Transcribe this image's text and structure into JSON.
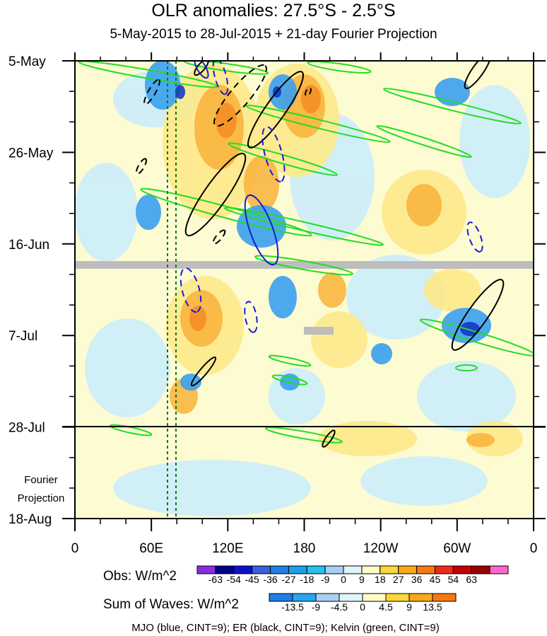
{
  "chart_data": {
    "type": "heatmap",
    "title": "OLR anomalies: 27.5°S - 2.5°S",
    "subtitle": "5-May-2015 to 28-Jul-2015 + 21-day Fourier Projection",
    "x_ticks": [
      "0",
      "60E",
      "120E",
      "180",
      "120W",
      "60W",
      "0"
    ],
    "y_ticks": [
      "5-May",
      "26-May",
      "16-Jun",
      "7-Jul",
      "28-Jul",
      "18-Aug"
    ],
    "projection_label": [
      "Fourier",
      "Projection"
    ],
    "obs_colorbar": {
      "label": "Obs: W/m^2",
      "levels": [
        "-63",
        "-54",
        "-45",
        "-36",
        "-27",
        "-18",
        "-9",
        "0",
        "9",
        "18",
        "27",
        "36",
        "45",
        "54",
        "63"
      ],
      "colors": [
        "#8a2be2",
        "#00008b",
        "#1010c8",
        "#3a5fdc",
        "#1e7fe6",
        "#1aa0ee",
        "#28c0ee",
        "#a9cff3",
        "#dff3fb",
        "#fffbc8",
        "#fcd63a",
        "#f9a81a",
        "#f57a12",
        "#ee2b1a",
        "#c40000",
        "#9a0000",
        "#ff66cc"
      ]
    },
    "waves_colorbar": {
      "label": "Sum of Waves: W/m^2",
      "levels": [
        "-13.5",
        "-9",
        "-4.5",
        "0",
        "4.5",
        "9",
        "13.5"
      ],
      "colors": [
        "#1e7fe6",
        "#28a6f0",
        "#a9cff3",
        "#dff3fb",
        "#fffbc8",
        "#fcd63a",
        "#f9a81a",
        "#f57a12"
      ]
    },
    "footnote": "MJO (blue, CINT=9); ER (black, CINT=9); Kelvin (green, CINT=9)",
    "wave_colors": {
      "MJO": "#1a1adc",
      "ER": "#000000",
      "Kelvin": "#22dd22"
    }
  }
}
